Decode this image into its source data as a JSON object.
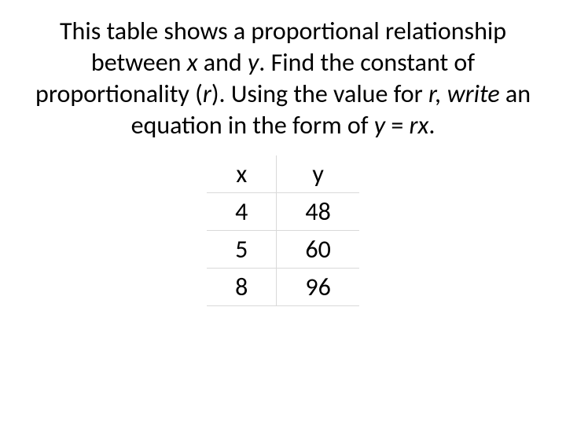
{
  "problem": {
    "segments": [
      {
        "text": "This table shows a proportional relationship between ",
        "italic": false
      },
      {
        "text": "x",
        "italic": true
      },
      {
        "text": " and ",
        "italic": false
      },
      {
        "text": "y",
        "italic": true
      },
      {
        "text": ". Find the constant of proportionality (",
        "italic": false
      },
      {
        "text": "r",
        "italic": true
      },
      {
        "text": "). Using the value for ",
        "italic": false
      },
      {
        "text": "r, write ",
        "italic": true
      },
      {
        "text": "an equation in the form of ",
        "italic": false
      },
      {
        "text": "y ",
        "italic": true
      },
      {
        "text": "= ",
        "italic": false
      },
      {
        "text": "rx",
        "italic": true
      },
      {
        "text": ".",
        "italic": false
      }
    ]
  },
  "table": {
    "type": "table",
    "columns": [
      "x",
      "y"
    ],
    "rows": [
      [
        "4",
        "48"
      ],
      [
        "5",
        "60"
      ],
      [
        "8",
        "96"
      ]
    ],
    "border_color": "#d9d9d9",
    "background_color": "#ffffff",
    "font_size": 32,
    "text_color": "#000000",
    "cell_padding_x": 36,
    "cell_padding_y": 4
  },
  "styling": {
    "body_font": "Calibri",
    "body_font_size": 32,
    "text_color": "#000000",
    "background_color": "#ffffff"
  }
}
